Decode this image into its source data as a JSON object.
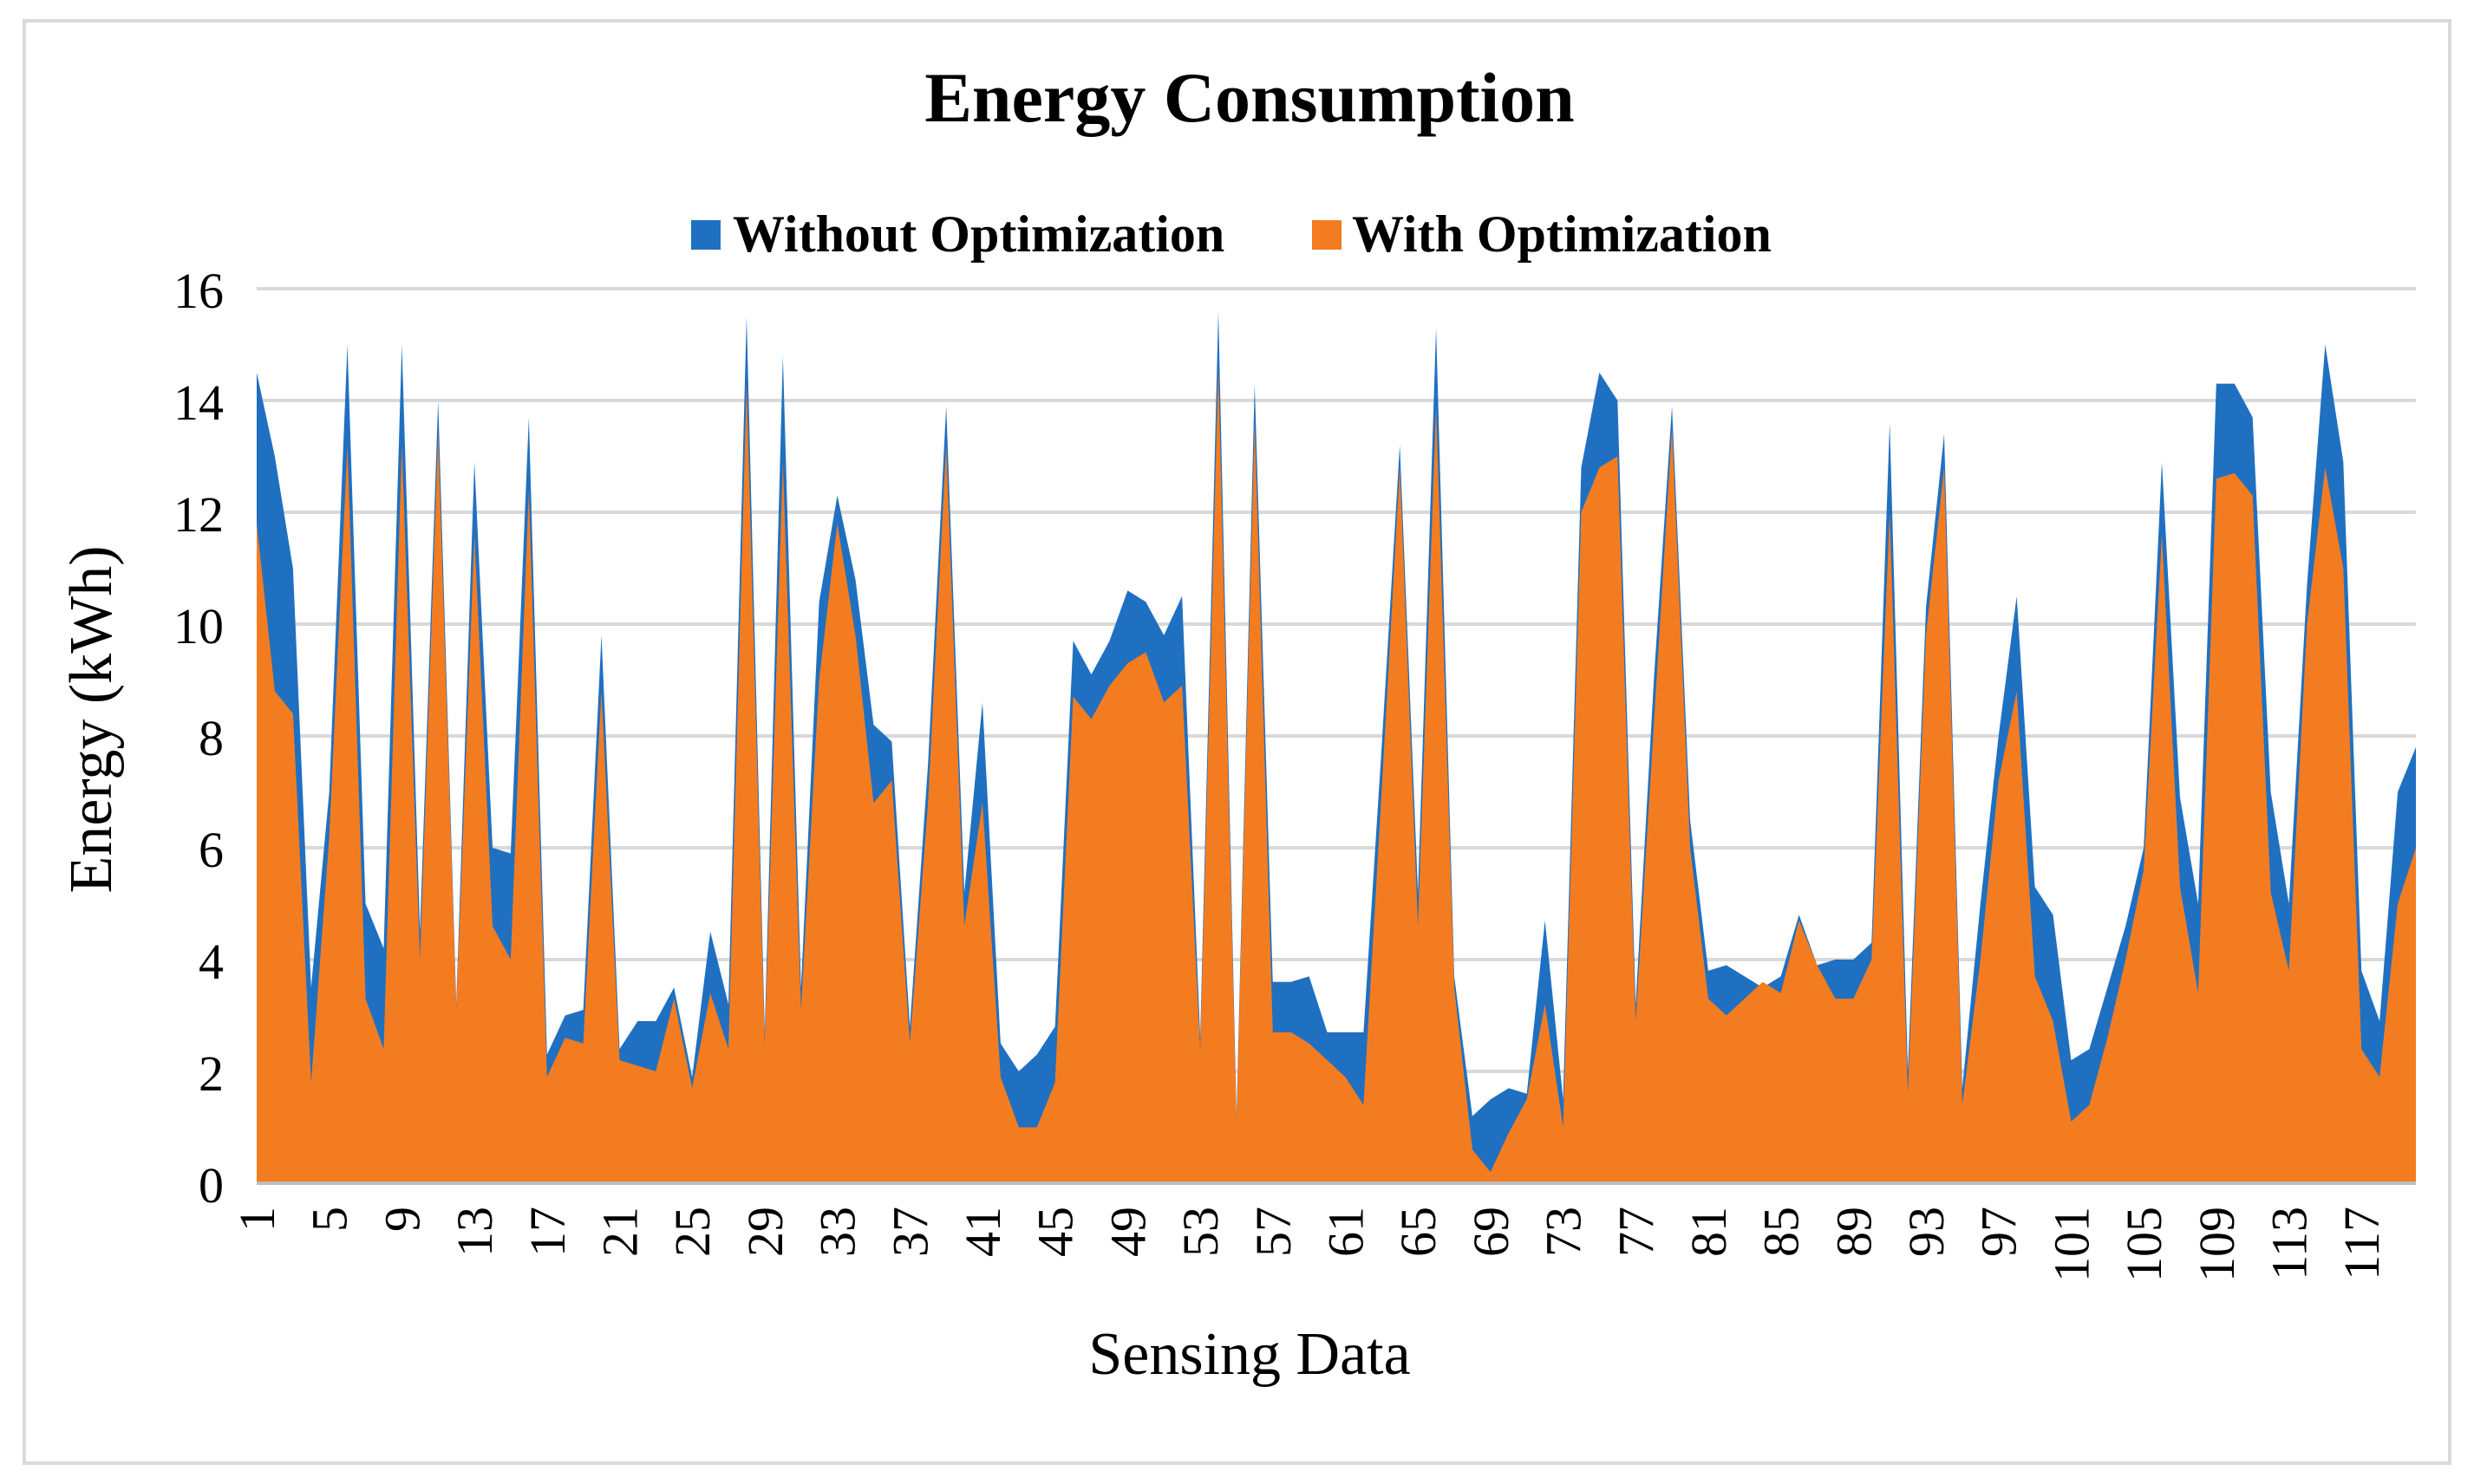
{
  "chart_data": {
    "type": "area",
    "title": "Energy Consumption",
    "xlabel": "Sensing Data",
    "ylabel": "Energy (kWh)",
    "ylim": [
      0,
      16
    ],
    "y_ticks": [
      0,
      2,
      4,
      6,
      8,
      10,
      12,
      14,
      16
    ],
    "x_tick_labels": [
      "1",
      "5",
      "9",
      "13",
      "17",
      "21",
      "25",
      "29",
      "33",
      "37",
      "41",
      "45",
      "49",
      "53",
      "57",
      "61",
      "65",
      "69",
      "73",
      "77",
      "81",
      "85",
      "89",
      "93",
      "97",
      "101",
      "105",
      "109",
      "113",
      "117"
    ],
    "grid": true,
    "legend_position": "top-center",
    "x": [
      1,
      2,
      3,
      4,
      5,
      6,
      7,
      8,
      9,
      10,
      11,
      12,
      13,
      14,
      15,
      16,
      17,
      18,
      19,
      20,
      21,
      22,
      23,
      24,
      25,
      26,
      27,
      28,
      29,
      30,
      31,
      32,
      33,
      34,
      35,
      36,
      37,
      38,
      39,
      40,
      41,
      42,
      43,
      44,
      45,
      46,
      47,
      48,
      49,
      50,
      51,
      52,
      53,
      54,
      55,
      56,
      57,
      58,
      59,
      60,
      61,
      62,
      63,
      64,
      65,
      66,
      67,
      68,
      69,
      70,
      71,
      72,
      73,
      74,
      75,
      76,
      77,
      78,
      79,
      80,
      81,
      82,
      83,
      84,
      85,
      86,
      87,
      88,
      89,
      90,
      91,
      92,
      93,
      94,
      95,
      96,
      97,
      98,
      99,
      100,
      101,
      102,
      103,
      104,
      105,
      106,
      107,
      108,
      109,
      110,
      111,
      112,
      113,
      114,
      115,
      116,
      117,
      118,
      119,
      120
    ],
    "series": [
      {
        "name": "Without Optimization",
        "color": "#1f70c1",
        "values": [
          14.5,
          13.0,
          11.0,
          3.5,
          7.0,
          15.0,
          5.0,
          4.2,
          15.0,
          4.5,
          14.0,
          3.2,
          12.9,
          6.0,
          5.9,
          13.7,
          2.3,
          3.0,
          3.1,
          9.8,
          2.4,
          2.9,
          2.9,
          3.5,
          1.9,
          4.5,
          3.2,
          15.5,
          2.7,
          14.8,
          3.5,
          10.4,
          12.3,
          10.8,
          8.2,
          7.9,
          2.8,
          7.5,
          13.9,
          5.2,
          8.6,
          2.5,
          2.0,
          2.3,
          2.8,
          9.7,
          9.1,
          9.7,
          10.6,
          10.4,
          9.8,
          10.5,
          2.6,
          15.6,
          1.2,
          14.3,
          3.6,
          3.6,
          3.7,
          2.7,
          2.7,
          2.7,
          7.8,
          13.2,
          5.2,
          15.3,
          3.7,
          1.2,
          1.5,
          1.7,
          1.6,
          4.7,
          1.5,
          12.8,
          14.5,
          14.0,
          3.2,
          9.0,
          13.9,
          6.5,
          3.8,
          3.9,
          3.7,
          3.5,
          3.7,
          4.8,
          3.9,
          4.0,
          4.0,
          4.3,
          13.6,
          2.0,
          10.3,
          13.4,
          1.7,
          5.0,
          8.0,
          10.5,
          5.3,
          4.8,
          2.2,
          2.4,
          3.5,
          4.6,
          6.0,
          12.9,
          6.9,
          5.0,
          14.3,
          14.3,
          13.7,
          7.0,
          5.0,
          10.7,
          15.0,
          12.9,
          3.8,
          2.9,
          7.0,
          7.8
        ]
      },
      {
        "name": "With Optimization",
        "color": "#f47c20",
        "values": [
          11.8,
          8.8,
          8.4,
          1.8,
          6.2,
          13.2,
          3.3,
          2.4,
          13.2,
          4.0,
          13.4,
          3.1,
          11.6,
          4.6,
          4.0,
          12.4,
          1.9,
          2.6,
          2.5,
          8.8,
          2.2,
          2.1,
          2.0,
          3.3,
          1.7,
          3.4,
          2.4,
          14.3,
          2.5,
          12.9,
          3.1,
          9.0,
          11.8,
          9.8,
          6.8,
          7.2,
          2.5,
          6.8,
          13.2,
          4.6,
          6.8,
          1.9,
          1.0,
          1.0,
          1.8,
          8.7,
          8.3,
          8.9,
          9.3,
          9.5,
          8.6,
          8.9,
          2.4,
          14.6,
          1.1,
          13.6,
          2.7,
          2.7,
          2.5,
          2.2,
          1.9,
          1.4,
          7.0,
          12.8,
          4.6,
          13.9,
          3.5,
          0.6,
          0.2,
          0.9,
          1.5,
          3.2,
          1.0,
          12.0,
          12.8,
          13.0,
          2.9,
          8.2,
          13.5,
          6.0,
          3.3,
          3.0,
          3.3,
          3.6,
          3.4,
          4.7,
          3.9,
          3.3,
          3.3,
          4.0,
          12.0,
          1.6,
          9.8,
          12.8,
          1.4,
          4.0,
          7.2,
          8.8,
          3.7,
          2.9,
          1.1,
          1.4,
          2.6,
          4.0,
          5.6,
          11.6,
          5.3,
          3.4,
          12.6,
          12.7,
          12.3,
          5.2,
          3.8,
          10.0,
          12.8,
          11.0,
          2.4,
          1.9,
          5.0,
          6.0
        ]
      }
    ]
  }
}
